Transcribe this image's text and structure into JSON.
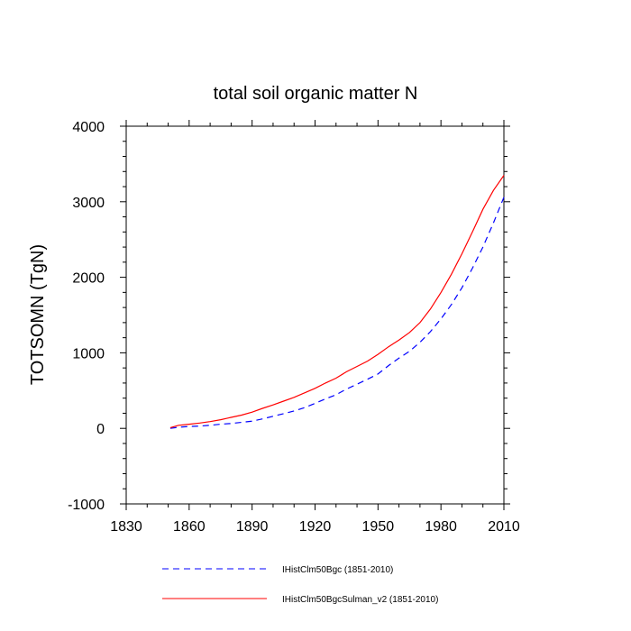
{
  "chart_data": {
    "type": "line",
    "title": "total soil organic matter N",
    "xlabel": "",
    "ylabel": "TOTSOMN  (TgN)",
    "xlim": [
      1830,
      2010
    ],
    "ylim": [
      -1000,
      4000
    ],
    "xticks": [
      "1830",
      "1860",
      "1890",
      "1920",
      "1950",
      "1980",
      "2010"
    ],
    "yticks": [
      "-1000",
      "0",
      "1000",
      "2000",
      "3000",
      "4000"
    ],
    "grid": false,
    "legend_position": "bottom",
    "series": [
      {
        "name": "IHistClm50Bgc (1851-2010)",
        "color": "#0000ff",
        "dash": "dashed",
        "x": [
          1851,
          1855,
          1860,
          1865,
          1870,
          1875,
          1880,
          1885,
          1890,
          1895,
          1900,
          1905,
          1910,
          1915,
          1920,
          1925,
          1930,
          1935,
          1940,
          1945,
          1950,
          1955,
          1960,
          1965,
          1970,
          1975,
          1980,
          1985,
          1990,
          1995,
          2000,
          2005,
          2010
        ],
        "y": [
          0,
          15,
          25,
          30,
          40,
          55,
          65,
          80,
          95,
          125,
          160,
          195,
          230,
          275,
          330,
          390,
          445,
          520,
          585,
          650,
          720,
          830,
          930,
          1020,
          1140,
          1280,
          1450,
          1640,
          1860,
          2120,
          2400,
          2720,
          3060
        ]
      },
      {
        "name": "IHistClm50BgcSulman_v2 (1851-2010)",
        "color": "#ff0000",
        "dash": "solid",
        "x": [
          1851,
          1855,
          1860,
          1865,
          1870,
          1875,
          1880,
          1885,
          1890,
          1895,
          1900,
          1905,
          1910,
          1915,
          1920,
          1925,
          1930,
          1935,
          1940,
          1945,
          1950,
          1955,
          1960,
          1965,
          1970,
          1975,
          1980,
          1985,
          1990,
          1995,
          2000,
          2005,
          2010
        ],
        "y": [
          10,
          40,
          55,
          70,
          90,
          115,
          145,
          175,
          215,
          265,
          310,
          360,
          410,
          470,
          530,
          600,
          665,
          750,
          820,
          890,
          980,
          1080,
          1170,
          1270,
          1400,
          1580,
          1800,
          2040,
          2310,
          2600,
          2900,
          3150,
          3350
        ]
      }
    ]
  }
}
